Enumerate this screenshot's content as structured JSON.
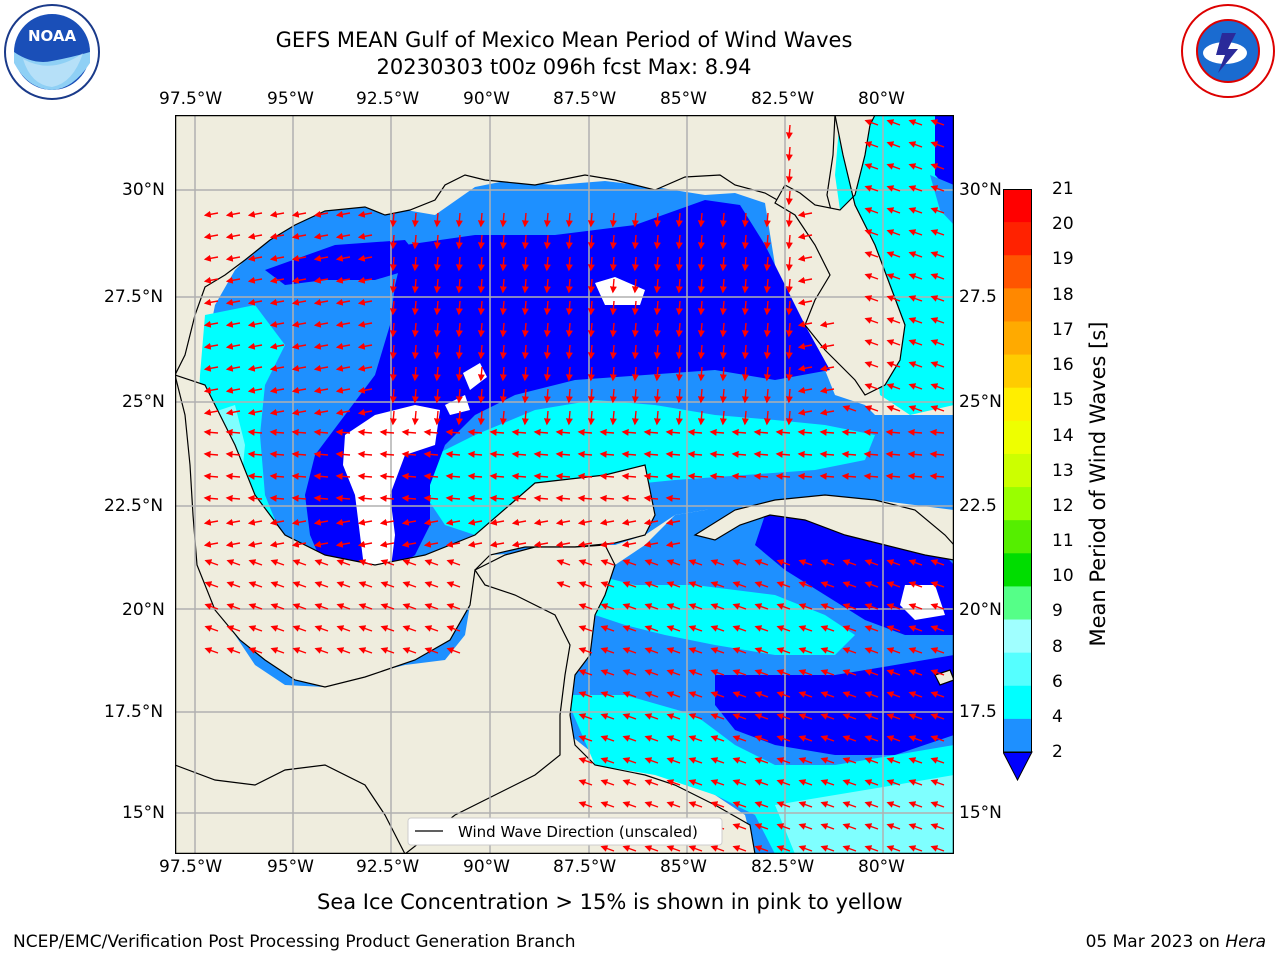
{
  "header": {
    "title_line1": "GEFS MEAN Gulf of Mexico Mean Period of Wind Waves",
    "title_line2": "20230303 t00z 096h fcst   Max: 8.94"
  },
  "logos": {
    "noaa": {
      "text": "NOAA",
      "ring_text": "NATIONAL OCEANIC AND ATMOSPHERIC ADMINISTRATION · U.S. DEPARTMENT OF COMMERCE"
    },
    "nws": {
      "ring_text": "NATIONAL WEATHER SERVICE"
    }
  },
  "map": {
    "lon_labels": [
      "97.5°W",
      "95°W",
      "92.5°W",
      "90°W",
      "87.5°W",
      "85°W",
      "82.5°W",
      "80°W"
    ],
    "lat_labels_left": [
      "30°N",
      "27.5°N",
      "25°N",
      "22.5°N",
      "20°N",
      "17.5°N",
      "15°N"
    ],
    "lat_labels_right": [
      "30°N",
      "27.5",
      "25°N",
      "22.5",
      "20°N",
      "17.5",
      "15°N"
    ],
    "legend_label": "Wind Wave Direction (unscaled)",
    "colors": {
      "land": "#efedde",
      "band_2_4": "#0000ff",
      "band_4_6": "#1e90ff",
      "band_6_8": "#00ffff",
      "band_8_9": "#7fffff",
      "arrows": "#ff0000",
      "grid": "#b0b0b0"
    }
  },
  "colorbar": {
    "label": "Mean Period of Wind Waves [s]",
    "ticks": [
      "21",
      "20",
      "19",
      "18",
      "17",
      "16",
      "15",
      "14",
      "13",
      "12",
      "11",
      "10",
      "9",
      "8",
      "6",
      "4",
      "2"
    ],
    "colors": [
      "#ff0000",
      "#ff2200",
      "#ff5500",
      "#ff8800",
      "#ffaa00",
      "#ffcc00",
      "#ffee00",
      "#eeff00",
      "#ccff00",
      "#99ff00",
      "#55ee00",
      "#00dd00",
      "#55ff88",
      "#a0ffff",
      "#55ffff",
      "#00ffff",
      "#1e90ff",
      "#0000ff"
    ]
  },
  "captions": {
    "sea_ice": "Sea Ice Concentration > 15% is shown in pink to yellow"
  },
  "footer": {
    "left": "NCEP/EMC/Verification Post Processing Product Generation Branch",
    "right_prefix": "05 Mar 2023 on ",
    "right_host": "Hera"
  }
}
